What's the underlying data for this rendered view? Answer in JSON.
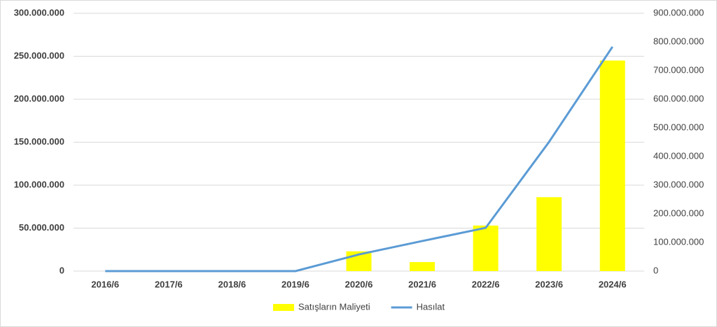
{
  "chart_data": {
    "type": "bar-line",
    "categories": [
      "2016/6",
      "2017/6",
      "2018/6",
      "2019/6",
      "2020/6",
      "2021/6",
      "2022/6",
      "2023/6",
      "2024/6"
    ],
    "series": [
      {
        "name": "Satışların Maliyeti",
        "type": "bar",
        "color": "#ffff00",
        "values": [
          0,
          0,
          0,
          0,
          23000000,
          10500000,
          53000000,
          86000000,
          245000000
        ]
      },
      {
        "name": "Hasılat",
        "type": "line",
        "axis": "y2",
        "color": "#5b9bd5",
        "values": [
          0,
          0,
          0,
          0,
          58000000,
          105000000,
          151000000,
          451000000,
          783000000
        ]
      }
    ],
    "ylim": [
      0,
      300000000
    ],
    "yticks": [
      0,
      {
        "value": 50000000,
        "label": "50.000.000"
      },
      {
        "value": 100000000,
        "label": "100.000.000"
      },
      {
        "value": 150000000,
        "label": "150.000.000"
      },
      {
        "value": 200000000,
        "label": "200.000.000"
      },
      {
        "value": 250000000,
        "label": "250.000.000"
      },
      {
        "value": 300000000,
        "label": "300.000.000"
      }
    ],
    "y2lim": [
      0,
      900000000
    ],
    "y2ticks": [
      0,
      {
        "value": 100000000,
        "label": "100.000.000"
      },
      {
        "value": 200000000,
        "label": "200.000.000"
      },
      {
        "value": 300000000,
        "label": "300.000.000"
      },
      {
        "value": 400000000,
        "label": "400.000.000"
      },
      {
        "value": 500000000,
        "label": "500.000.000"
      },
      {
        "value": 600000000,
        "label": "600.000.000"
      },
      {
        "value": 700000000,
        "label": "700.000.000"
      },
      {
        "value": 800000000,
        "label": "800.000.000"
      },
      {
        "value": 900000000,
        "label": "900.000.000"
      }
    ],
    "grid": true,
    "legend": "bottom"
  }
}
